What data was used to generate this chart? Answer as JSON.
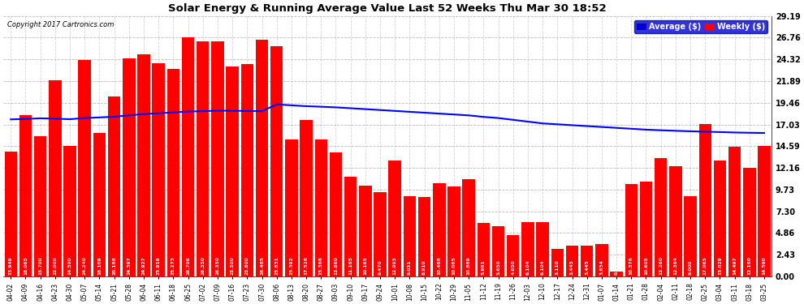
{
  "title": "Solar Energy & Running Average Value Last 52 Weeks Thu Mar 30 18:52",
  "copyright": "Copyright 2017 Cartronics.com",
  "bar_color": "#ff0000",
  "avg_line_color": "#0000ff",
  "background_color": "#ffffff",
  "plot_bg_color": "#ffffff",
  "grid_color": "#aaaaaa",
  "ylim": [
    0.0,
    29.19
  ],
  "yticks": [
    0.0,
    2.43,
    4.86,
    7.3,
    9.73,
    12.16,
    14.59,
    17.03,
    19.46,
    21.89,
    24.32,
    26.76,
    29.19
  ],
  "categories": [
    "04-02",
    "04-09",
    "04-16",
    "04-23",
    "04-30",
    "05-07",
    "05-14",
    "05-21",
    "05-28",
    "06-04",
    "06-11",
    "06-18",
    "06-25",
    "07-02",
    "07-09",
    "07-16",
    "07-23",
    "07-30",
    "08-06",
    "08-13",
    "08-20",
    "08-27",
    "09-03",
    "09-10",
    "09-17",
    "09-24",
    "10-01",
    "10-08",
    "10-15",
    "10-22",
    "10-29",
    "11-05",
    "11-12",
    "11-19",
    "11-26",
    "12-03",
    "12-10",
    "12-17",
    "12-24",
    "12-31",
    "01-07",
    "01-14",
    "01-21",
    "01-28",
    "02-04",
    "02-11",
    "02-18",
    "02-25",
    "03-04",
    "03-11",
    "03-18",
    "03-25"
  ],
  "weekly_values": [
    13.949,
    18.065,
    15.7,
    22.0,
    14.59,
    24.24,
    16.109,
    20.188,
    24.397,
    24.927,
    23.919,
    23.273,
    26.796,
    26.35,
    26.35,
    23.5,
    23.8,
    26.485,
    25.831,
    15.392,
    17.526,
    15.366,
    13.86,
    11.165,
    10.185,
    9.47,
    12.993,
    9.031,
    8.91,
    10.468,
    10.065,
    10.869,
    5.961,
    5.65,
    4.65,
    6.104,
    6.104,
    3.11,
    3.445,
    3.445,
    3.634,
    0.554,
    10.376,
    10.605,
    13.26,
    12.364,
    9.0,
    17.065,
    13.029,
    14.497,
    12.16,
    14.59
  ],
  "avg_values": [
    17.6,
    17.65,
    17.72,
    17.68,
    17.62,
    17.75,
    17.82,
    17.9,
    18.05,
    18.2,
    18.28,
    18.38,
    18.48,
    18.52,
    18.58,
    18.57,
    18.54,
    18.52,
    19.28,
    19.18,
    19.08,
    19.02,
    18.95,
    18.85,
    18.75,
    18.65,
    18.55,
    18.45,
    18.35,
    18.25,
    18.15,
    18.05,
    17.88,
    17.75,
    17.55,
    17.35,
    17.15,
    17.05,
    16.95,
    16.85,
    16.75,
    16.65,
    16.55,
    16.45,
    16.38,
    16.32,
    16.27,
    16.22,
    16.18,
    16.13,
    16.1,
    16.08
  ],
  "legend_avg_bg": "#0000cd",
  "legend_weekly_bg": "#ff0000",
  "legend_text_color": "#ffffff"
}
